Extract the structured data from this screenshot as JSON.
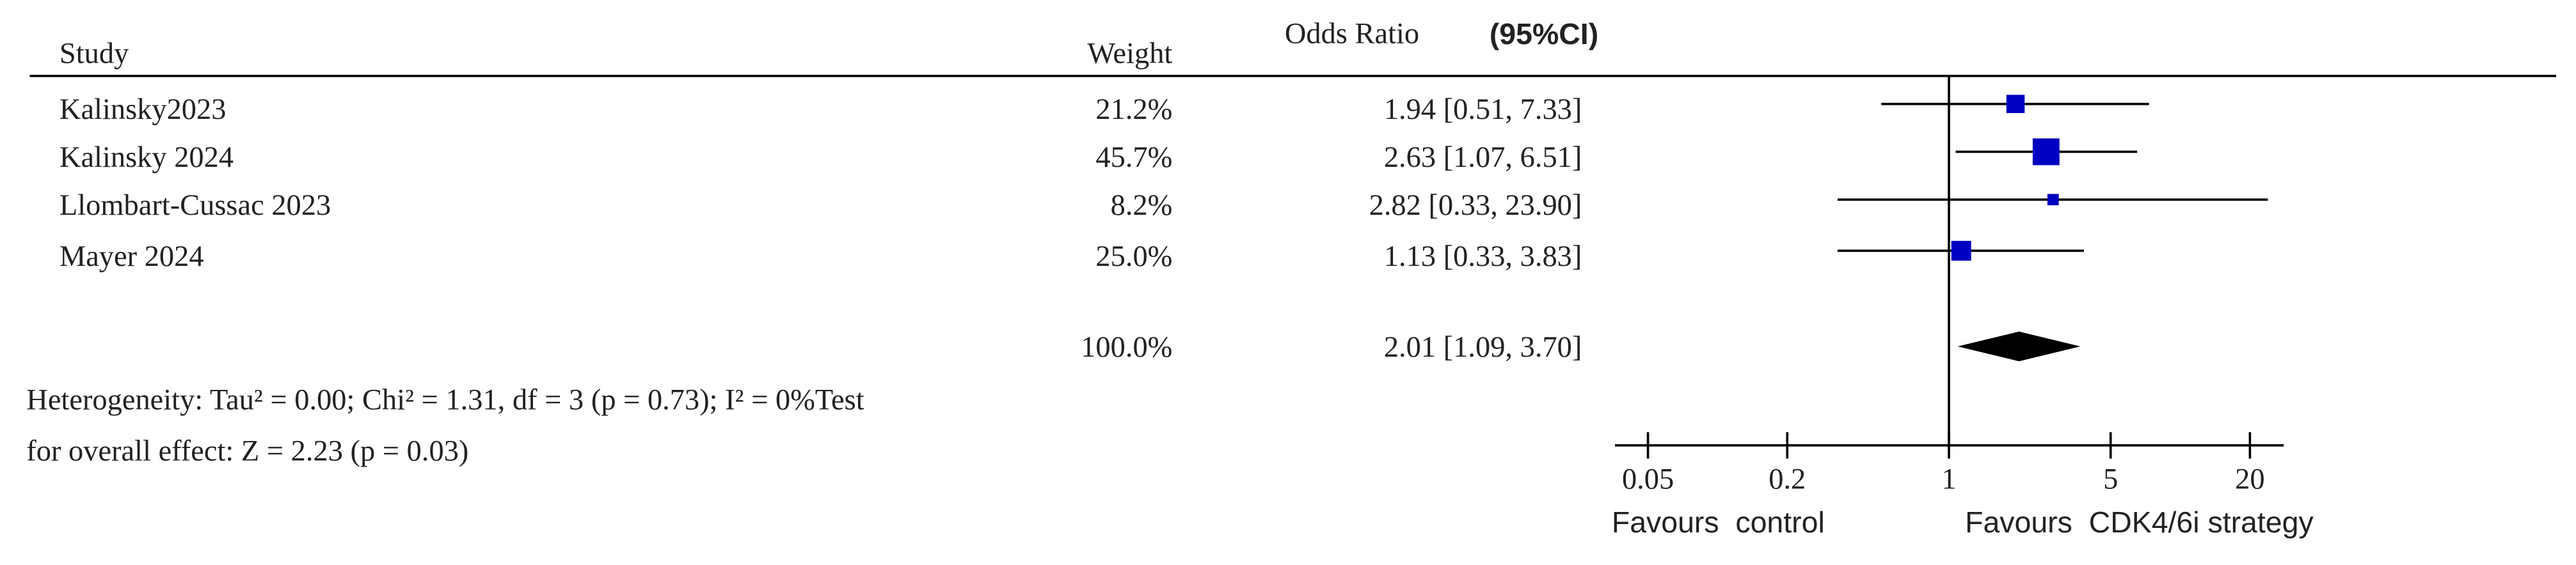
{
  "chart_data": {
    "type": "forest",
    "headers": {
      "study": "Study",
      "weight": "Weight",
      "effect": "Odds Ratio",
      "ci": "(95%CI)"
    },
    "categories": [
      "Kalinsky2023",
      "Kalinsky 2024",
      "Llombart-Cussac 2023",
      "Mayer 2024"
    ],
    "weights": [
      21.2,
      45.7,
      8.2,
      25.0
    ],
    "weight_labels": [
      "21.2%",
      "45.7%",
      "8.2%",
      "25.0%"
    ],
    "values": [
      1.94,
      2.63,
      2.82,
      1.13
    ],
    "lower": [
      0.51,
      1.07,
      0.33,
      0.33
    ],
    "upper": [
      7.33,
      6.51,
      23.9,
      3.83
    ],
    "value_labels": [
      "1.94 [0.51, 7.33]",
      "2.63 [1.07, 6.51]",
      "2.82 [0.33, 23.90]",
      "1.13 [0.33, 3.83]"
    ],
    "total": {
      "weight": 100.0,
      "weight_label": "100.0%",
      "value": 2.01,
      "lower": 1.09,
      "upper": 3.7,
      "value_label": "2.01 [1.09, 3.70]"
    },
    "notes": [
      "Heterogeneity: Tau² = 0.00; Chi² = 1.31, df = 3 (p = 0.73); I² = 0%Test",
      "for overall effect: Z = 2.23 (p = 0.03)"
    ],
    "x_label_left": "Favours  control",
    "x_label_right": "Favours  CDK4/6i strategy",
    "log_scale": true,
    "xlim": [
      0.036,
      28
    ],
    "xticks": [
      0.05,
      0.2,
      1,
      5,
      20
    ],
    "color": "#0000c0"
  }
}
